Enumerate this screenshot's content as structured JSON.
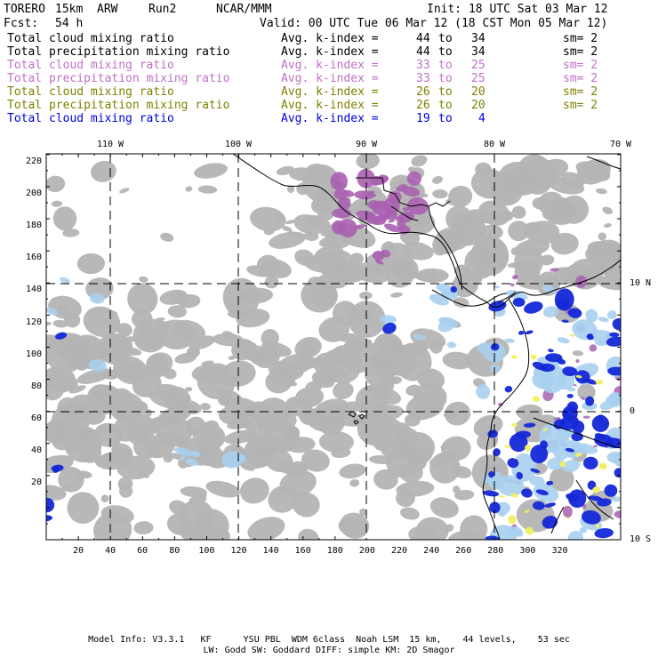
{
  "header": {
    "model": "TORERO",
    "resolution": "15km",
    "core": "ARW",
    "run": "Run2",
    "org": "NCAR/MMM",
    "init": "Init: 18 UTC Sat 03 Mar 12",
    "fcst_label": "Fcst:",
    "fcst_value": "54 h",
    "valid": "Valid: 00 UTC Tue 06 Mar 12 (18 CST Mon 05 Mar 12)"
  },
  "legend": [
    {
      "field": "Total cloud mixing ratio",
      "stat": "Avg. k-index =",
      "k1": "44",
      "to": "to",
      "k2": "34",
      "sm": "sm= 2",
      "color": "#000000"
    },
    {
      "field": "Total precipitation mixing ratio",
      "stat": "Avg. k-index =",
      "k1": "44",
      "to": "to",
      "k2": "34",
      "sm": "sm= 2",
      "color": "#000000"
    },
    {
      "field": "Total cloud mixing ratio",
      "stat": "Avg. k-index =",
      "k1": "33",
      "to": "to",
      "k2": "25",
      "sm": "sm= 2",
      "color": "#c070c8"
    },
    {
      "field": "Total precipitation mixing ratio",
      "stat": "Avg. k-index =",
      "k1": "33",
      "to": "to",
      "k2": "25",
      "sm": "sm= 2",
      "color": "#c070c8"
    },
    {
      "field": "Total cloud mixing ratio",
      "stat": "Avg. k-index =",
      "k1": "26",
      "to": "to",
      "k2": "20",
      "sm": "sm= 2",
      "color": "#808000"
    },
    {
      "field": "Total precipitation mixing ratio",
      "stat": "Avg. k-index =",
      "k1": "26",
      "to": "to",
      "k2": "20",
      "sm": "sm= 2",
      "color": "#808000"
    },
    {
      "field": "Total cloud mixing ratio",
      "stat": "Avg. k-index =",
      "k1": "19",
      "to": "to",
      "k2": "4",
      "sm": "",
      "color": "#0000e0"
    }
  ],
  "map": {
    "lon_labels": [
      "110 W",
      "100 W",
      "90 W",
      "80 W",
      "70 W"
    ],
    "lat_labels": [
      "10 N",
      "0",
      "10 S"
    ],
    "y_ticks": [
      "220",
      "200",
      "180",
      "160",
      "140",
      "120",
      "100",
      "80",
      "60",
      "40",
      "20"
    ],
    "x_ticks": [
      "20",
      "40",
      "60",
      "80",
      "100",
      "120",
      "140",
      "160",
      "180",
      "200",
      "220",
      "240",
      "260",
      "280",
      "300",
      "320"
    ],
    "colors": {
      "cloud": "#b4b4b4",
      "purple": "#a860b0",
      "blue_dark": "#1428d8",
      "blue_light": "#a8d0f0",
      "yellow": "#f0f060",
      "frame": "#000000"
    }
  },
  "footer": {
    "line1": "Model Info: V3.3.1   KF      YSU PBL  WDM 6class  Noah LSM  15 km,    44 levels,    53 sec",
    "line2": "LW: Godd SW: Goddard DIFF: simple KM: 2D Smagor"
  }
}
